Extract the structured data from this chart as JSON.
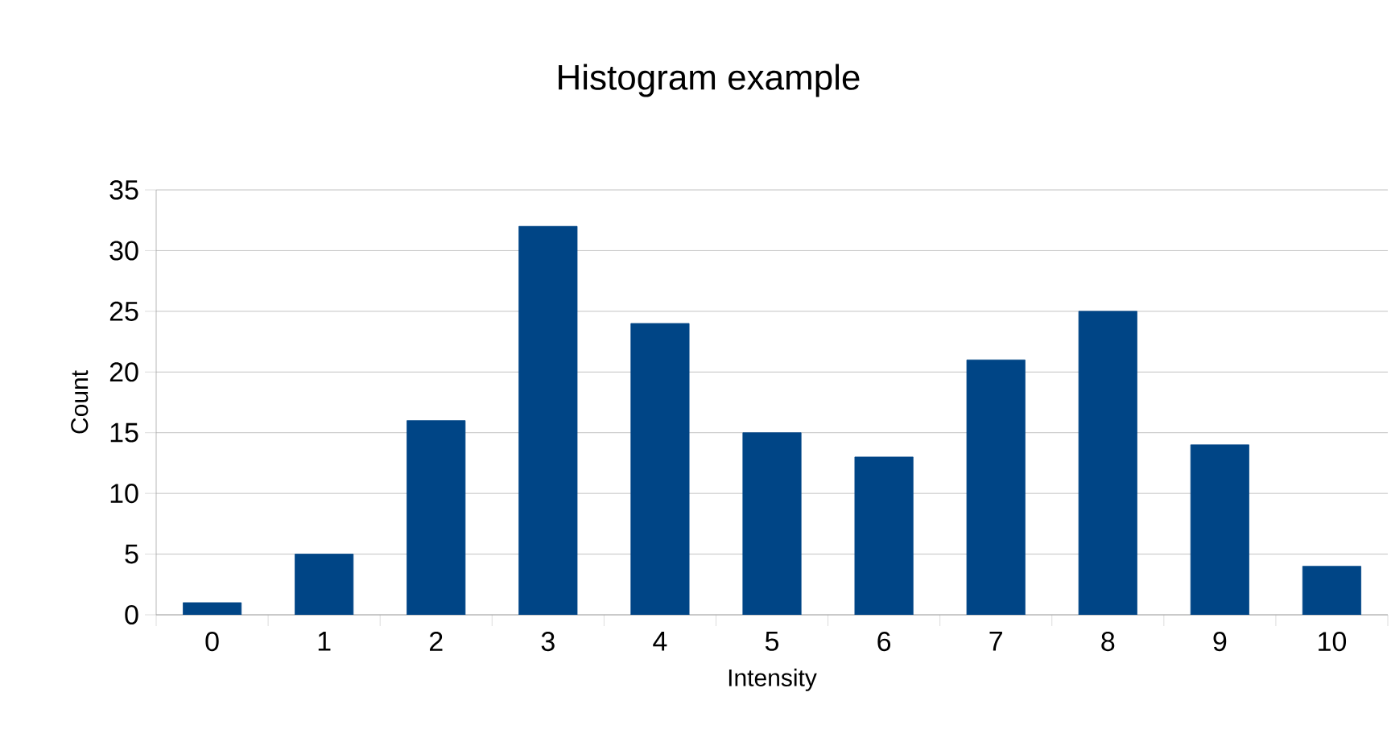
{
  "chart_data": {
    "type": "bar",
    "title": "Histogram example",
    "xlabel": "Intensity",
    "ylabel": "Count",
    "categories": [
      "0",
      "1",
      "2",
      "3",
      "4",
      "5",
      "6",
      "7",
      "8",
      "9",
      "10"
    ],
    "values": [
      1,
      5,
      16,
      32,
      24,
      15,
      13,
      21,
      25,
      14,
      4
    ],
    "color": "#004586",
    "ylim": [
      0,
      35
    ],
    "yticks": [
      0,
      5,
      10,
      15,
      20,
      25,
      30,
      35
    ],
    "grid": "y"
  }
}
